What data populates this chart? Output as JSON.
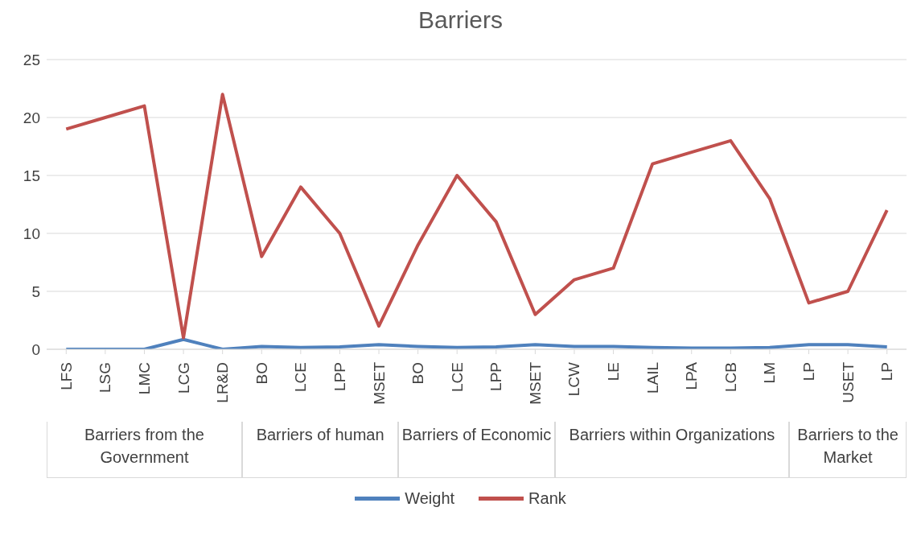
{
  "chart_data": {
    "type": "line",
    "title": "Barriers",
    "categories": [
      "LFS",
      "LSG",
      "LMC",
      "LCG",
      "LR&D",
      "BO",
      "LCE",
      "LPP",
      "MSET",
      "BO",
      "LCE",
      "LPP",
      "MSET",
      "LCW",
      "LE",
      "LAIL",
      "LPA",
      "LCB",
      "LM",
      "LP",
      "USET",
      "LP"
    ],
    "series": [
      {
        "name": "Weight",
        "color": "#4f81bd",
        "values": [
          0,
          0,
          0,
          0.85,
          0,
          0.25,
          0.15,
          0.2,
          0.4,
          0.25,
          0.15,
          0.2,
          0.4,
          0.25,
          0.25,
          0.15,
          0.1,
          0.1,
          0.15,
          0.4,
          0.4,
          0.2
        ]
      },
      {
        "name": "Rank",
        "color": "#c0504d",
        "values": [
          19,
          20,
          21,
          1,
          22,
          8,
          14,
          10,
          2,
          9,
          15,
          11,
          3,
          6,
          7,
          16,
          17,
          18,
          13,
          4,
          5,
          12
        ]
      }
    ],
    "annotations": [
      "Barriers from the Government",
      "Barriers of human",
      "Barriers of Economic",
      "Barriers within Organizations",
      "Barriers to the Market"
    ],
    "ylim": [
      0,
      25
    ],
    "yticks": [
      0,
      5,
      10,
      15,
      20,
      25
    ],
    "grid": "y",
    "legend": "bottom"
  }
}
